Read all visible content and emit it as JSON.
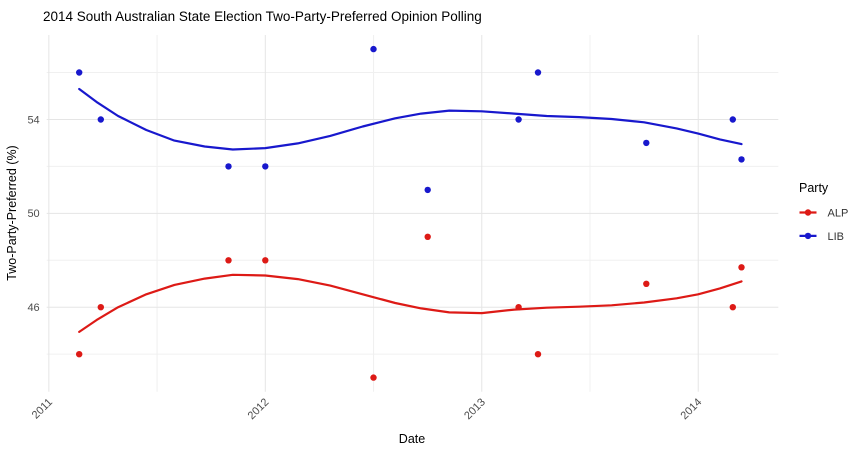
{
  "colors": {
    "background": "#ffffff",
    "grid_major": "#e5e5e5",
    "grid_minor": "#f0f0f0",
    "axis_text": "#4d4d4d",
    "title_text": "#000000",
    "alp_red": "#dd1a16",
    "lib_blue": "#1818cd"
  },
  "chart_data": {
    "type": "scatter",
    "subtype": "points-with-loess-smooth",
    "title": "2014 South Australian State Election Two-Party-Preferred Opinion Polling",
    "xlabel": "Date",
    "ylabel": "Two-Party-Preferred (%)",
    "legend_title": "Party",
    "legend_position": "right",
    "grid": "on",
    "x_range": [
      2010.99,
      2014.37
    ],
    "y_range": [
      42.4,
      57.6
    ],
    "x_major_ticks": [
      2011,
      2012,
      2013,
      2014
    ],
    "x_tick_labels": [
      "2011",
      "2012",
      "2013",
      "2014"
    ],
    "x_minor_ticks": [
      2011.5,
      2012.5,
      2013.5
    ],
    "y_major_ticks": [
      46,
      50,
      54
    ],
    "y_tick_labels": [
      "46",
      "50",
      "54"
    ],
    "y_minor_ticks": [
      44,
      48,
      52,
      56
    ],
    "x": [
      2011.14,
      2011.24,
      2011.83,
      2012.0,
      2012.5,
      2012.75,
      2013.17,
      2013.26,
      2013.76,
      2014.16,
      2014.2
    ],
    "series": [
      {
        "name": "ALP",
        "color": "#dd1a16",
        "values": [
          44,
          46,
          48,
          48,
          43,
          49,
          46,
          44,
          47,
          46,
          47.7
        ],
        "trend": [
          [
            2011.14,
            44.95
          ],
          [
            2011.22,
            45.45
          ],
          [
            2011.32,
            46.0
          ],
          [
            2011.45,
            46.55
          ],
          [
            2011.58,
            46.95
          ],
          [
            2011.72,
            47.22
          ],
          [
            2011.85,
            47.38
          ],
          [
            2012.0,
            47.35
          ],
          [
            2012.15,
            47.2
          ],
          [
            2012.3,
            46.92
          ],
          [
            2012.45,
            46.55
          ],
          [
            2012.6,
            46.18
          ],
          [
            2012.72,
            45.95
          ],
          [
            2012.85,
            45.78
          ],
          [
            2013.0,
            45.75
          ],
          [
            2013.15,
            45.9
          ],
          [
            2013.3,
            45.98
          ],
          [
            2013.45,
            46.02
          ],
          [
            2013.6,
            46.08
          ],
          [
            2013.75,
            46.2
          ],
          [
            2013.9,
            46.38
          ],
          [
            2014.0,
            46.55
          ],
          [
            2014.1,
            46.8
          ],
          [
            2014.2,
            47.1
          ]
        ]
      },
      {
        "name": "LIB",
        "color": "#1818cd",
        "values": [
          56,
          54,
          52,
          52,
          57,
          51,
          54,
          56,
          53,
          54,
          52.3
        ],
        "trend": [
          [
            2011.14,
            55.3
          ],
          [
            2011.22,
            54.75
          ],
          [
            2011.32,
            54.15
          ],
          [
            2011.45,
            53.55
          ],
          [
            2011.58,
            53.1
          ],
          [
            2011.72,
            52.85
          ],
          [
            2011.85,
            52.72
          ],
          [
            2012.0,
            52.78
          ],
          [
            2012.15,
            52.98
          ],
          [
            2012.3,
            53.3
          ],
          [
            2012.45,
            53.7
          ],
          [
            2012.6,
            54.05
          ],
          [
            2012.72,
            54.25
          ],
          [
            2012.85,
            54.38
          ],
          [
            2013.0,
            54.35
          ],
          [
            2013.15,
            54.25
          ],
          [
            2013.3,
            54.15
          ],
          [
            2013.45,
            54.1
          ],
          [
            2013.6,
            54.02
          ],
          [
            2013.75,
            53.88
          ],
          [
            2013.9,
            53.62
          ],
          [
            2014.0,
            53.4
          ],
          [
            2014.1,
            53.15
          ],
          [
            2014.2,
            52.95
          ]
        ]
      }
    ]
  }
}
